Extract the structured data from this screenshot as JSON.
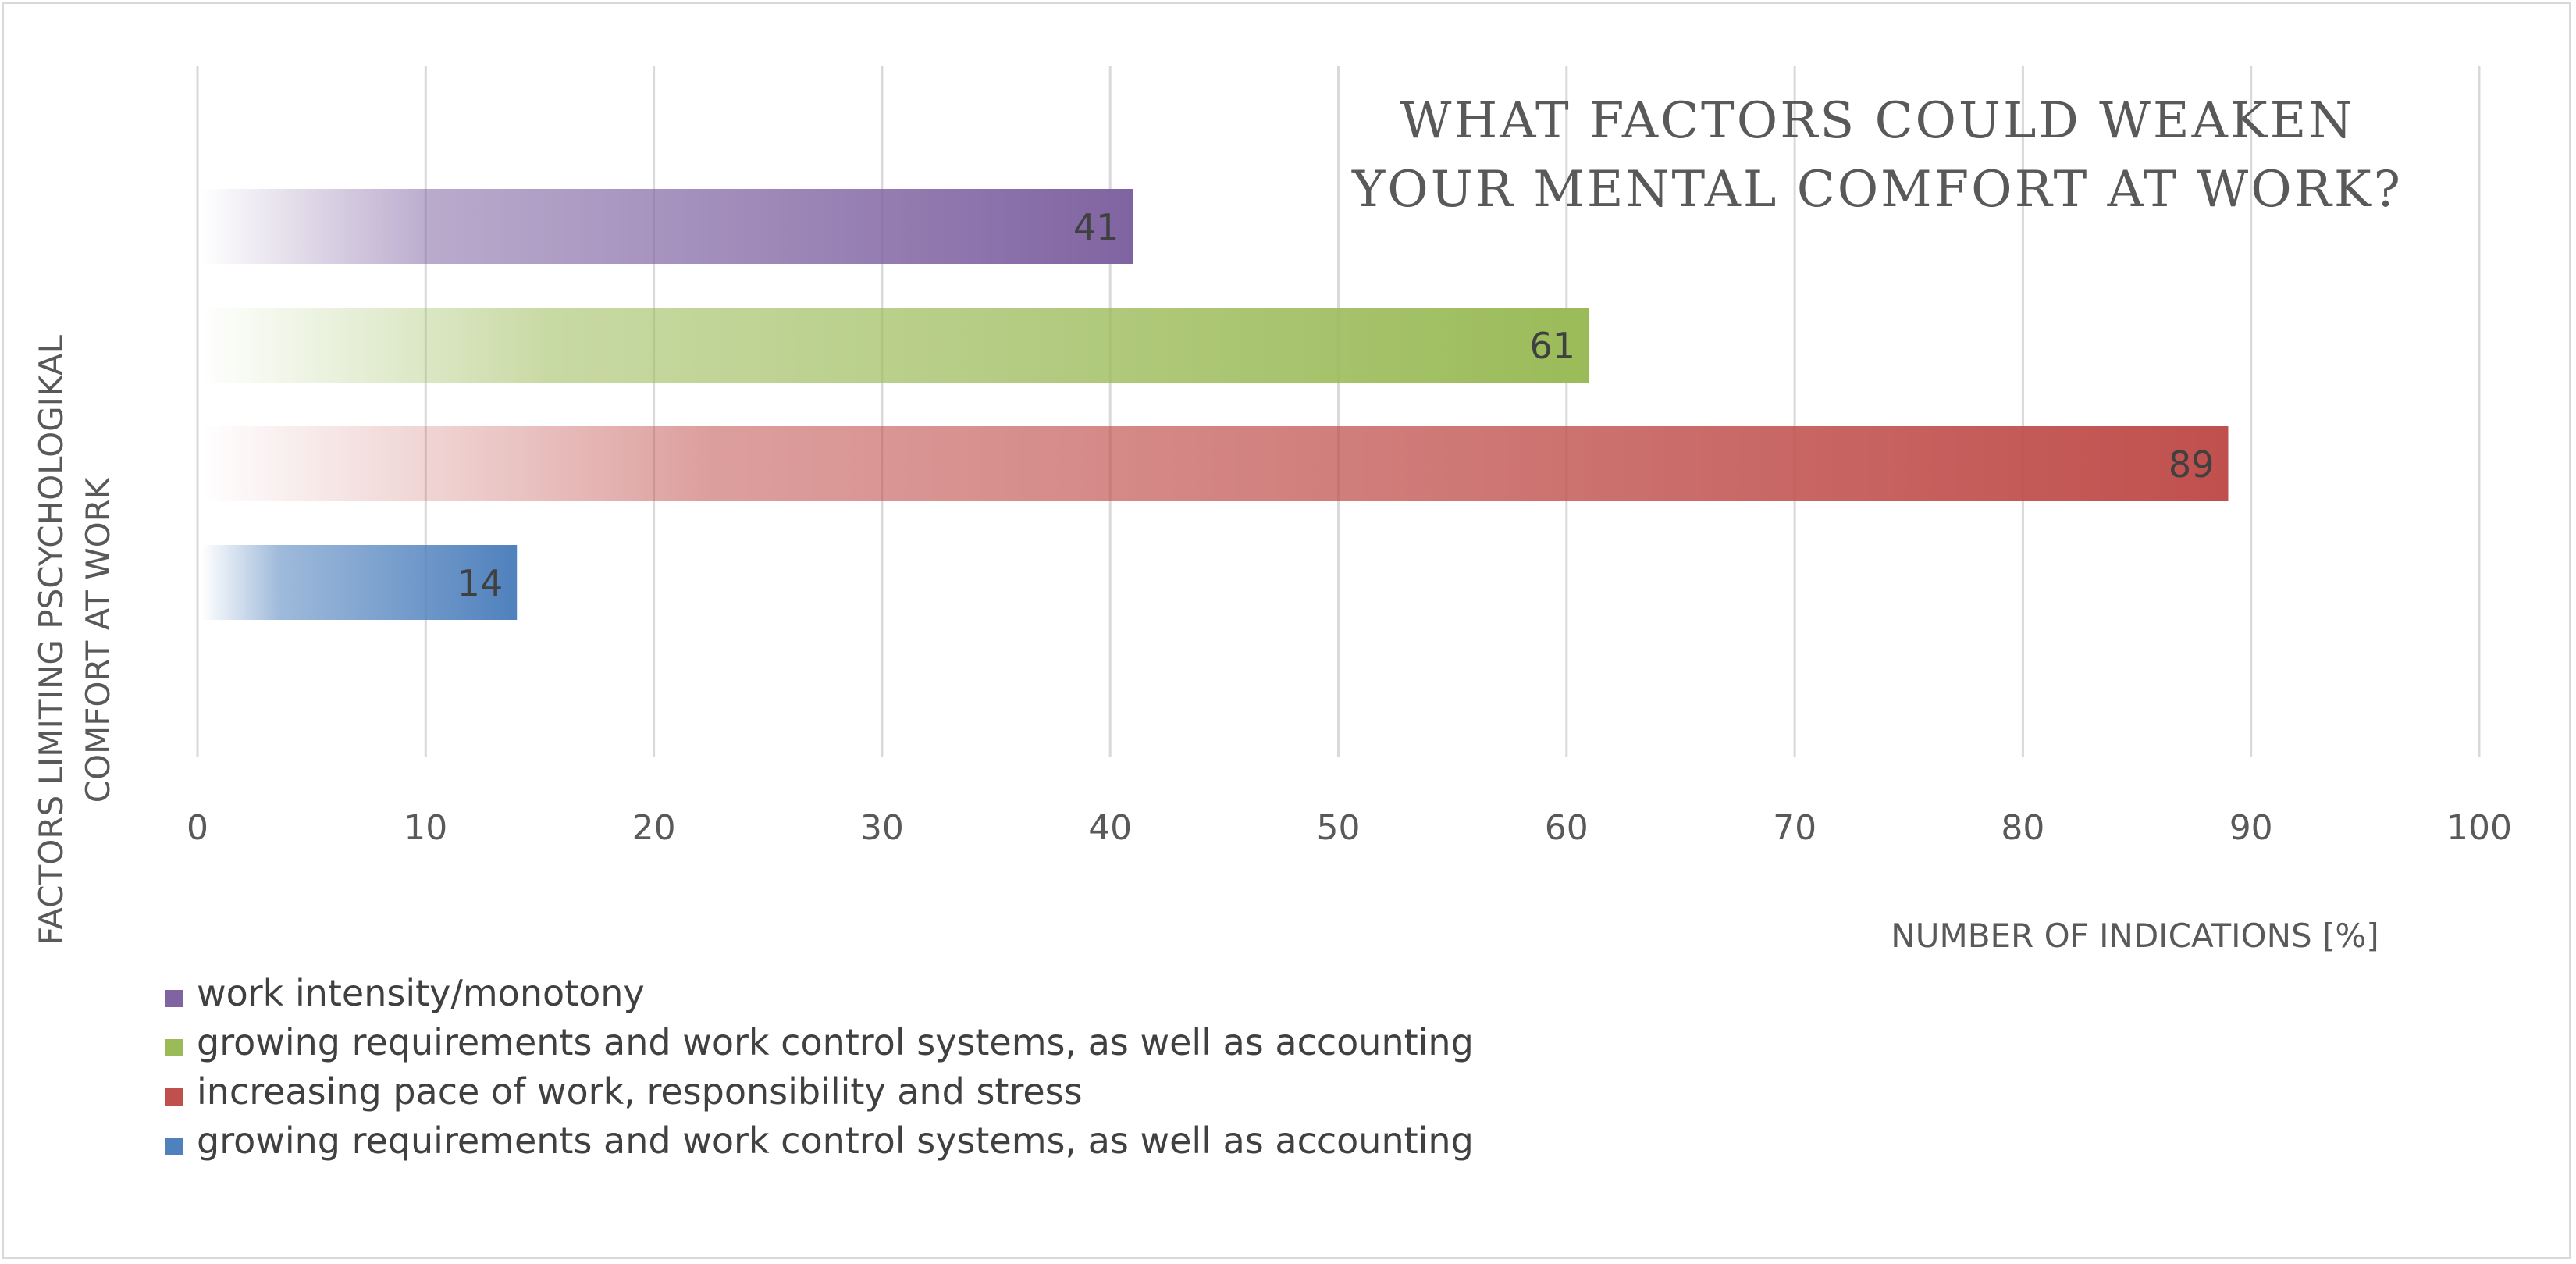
{
  "chart_data": {
    "type": "bar",
    "orientation": "horizontal",
    "title": [
      "WHAT FACTORS COULD WEAKEN",
      "YOUR MENTAL COMFORT AT WORK?"
    ],
    "xlabel": "NUMBER OF INDICATIONS [%]",
    "ylabel": [
      "FACTORS LIMITING PSCYCHOLOGIKAL",
      "COMFORT AT WORK"
    ],
    "xlim": [
      0,
      100
    ],
    "xticks": [
      0,
      10,
      20,
      30,
      40,
      50,
      60,
      70,
      80,
      90,
      100
    ],
    "grid": true,
    "legend_position": "bottom-left",
    "series": [
      {
        "name": "work intensity/monotony",
        "value": 41,
        "color": "#8064a2"
      },
      {
        "name": "growing requirements and work control systems, as well as accounting",
        "value": 61,
        "color": "#9bbb59"
      },
      {
        "name": "increasing pace of work, responsibility and stress",
        "value": 89,
        "color": "#c0504d"
      },
      {
        "name": "growing requirements and work control systems, as well as accounting",
        "value": 14,
        "color": "#4f81bd"
      }
    ]
  }
}
